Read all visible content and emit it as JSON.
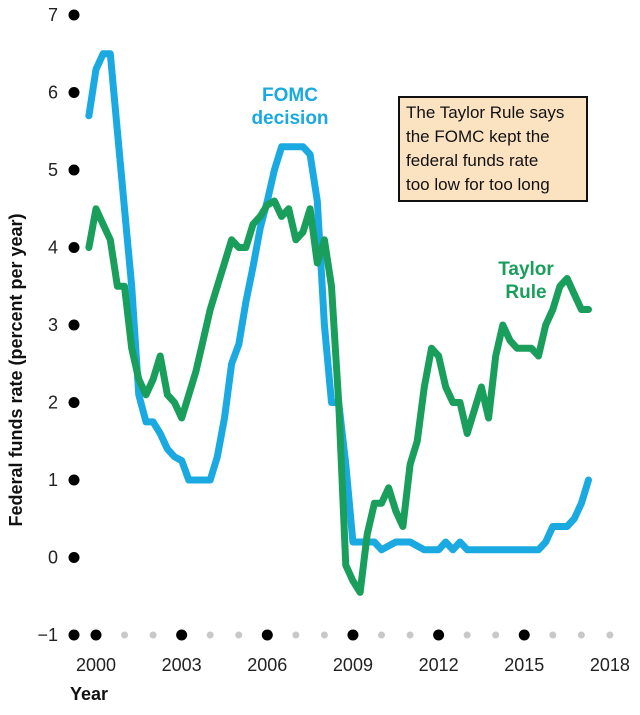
{
  "chart_data": {
    "type": "line",
    "title": "",
    "xlabel": "Year",
    "ylabel": "Federal funds rate (percent per year)",
    "xlim": [
      1999.5,
      2018.8
    ],
    "ylim": [
      -1,
      7
    ],
    "y_ticks": [
      -1,
      0,
      1,
      2,
      3,
      4,
      5,
      6,
      7
    ],
    "x_tick_labels": [
      "2000",
      "2003",
      "2006",
      "2009",
      "2012",
      "2015",
      "2018"
    ],
    "x_tick_values": [
      2000,
      2003,
      2006,
      2009,
      2012,
      2015,
      2018
    ],
    "x_minor_ticks": [
      2000,
      2001,
      2002,
      2003,
      2004,
      2005,
      2006,
      2007,
      2008,
      2009,
      2010,
      2011,
      2012,
      2013,
      2014,
      2015,
      2016,
      2017,
      2018
    ],
    "x_major_ticks": [
      2000,
      2003,
      2006,
      2009,
      2012,
      2015
    ],
    "annotation": {
      "lines": [
        "The Taylor Rule says",
        "the FOMC kept the",
        "federal funds rate",
        "too low for too long"
      ]
    },
    "series": [
      {
        "name": "FOMC decision",
        "label_lines": [
          "FOMC",
          "decision"
        ],
        "color": "#1aa9e0",
        "x": [
          1999.75,
          2000.0,
          2000.25,
          2000.5,
          2000.75,
          2001.0,
          2001.25,
          2001.5,
          2001.75,
          2002.0,
          2002.25,
          2002.5,
          2002.75,
          2003.0,
          2003.25,
          2003.5,
          2003.75,
          2004.0,
          2004.25,
          2004.5,
          2004.75,
          2005.0,
          2005.25,
          2005.5,
          2005.75,
          2006.0,
          2006.25,
          2006.5,
          2006.75,
          2007.0,
          2007.25,
          2007.5,
          2007.75,
          2008.0,
          2008.25,
          2008.5,
          2008.75,
          2009.0,
          2009.25,
          2009.5,
          2009.75,
          2010.0,
          2010.5,
          2011.0,
          2011.5,
          2012.0,
          2012.25,
          2012.5,
          2012.75,
          2013.0,
          2013.5,
          2014.0,
          2014.5,
          2015.0,
          2015.5,
          2015.75,
          2016.0,
          2016.5,
          2016.75,
          2017.0,
          2017.25
        ],
        "values": [
          5.7,
          6.3,
          6.5,
          6.5,
          5.5,
          4.5,
          3.5,
          2.1,
          1.75,
          1.75,
          1.6,
          1.4,
          1.3,
          1.25,
          1.0,
          1.0,
          1.0,
          1.0,
          1.3,
          1.8,
          2.5,
          2.75,
          3.3,
          3.75,
          4.25,
          4.6,
          5.0,
          5.3,
          5.3,
          5.3,
          5.3,
          5.2,
          4.6,
          3.0,
          2.0,
          2.0,
          1.2,
          0.2,
          0.2,
          0.2,
          0.2,
          0.1,
          0.2,
          0.2,
          0.1,
          0.1,
          0.2,
          0.1,
          0.2,
          0.1,
          0.1,
          0.1,
          0.1,
          0.1,
          0.1,
          0.2,
          0.4,
          0.4,
          0.5,
          0.7,
          1.0
        ]
      },
      {
        "name": "Taylor Rule",
        "label_lines": [
          "Taylor",
          "Rule"
        ],
        "color": "#1a9e5c",
        "x": [
          1999.75,
          2000.0,
          2000.25,
          2000.5,
          2000.75,
          2001.0,
          2001.25,
          2001.5,
          2001.75,
          2002.0,
          2002.25,
          2002.5,
          2002.75,
          2003.0,
          2003.25,
          2003.5,
          2003.75,
          2004.0,
          2004.25,
          2004.5,
          2004.75,
          2005.0,
          2005.25,
          2005.5,
          2005.75,
          2006.0,
          2006.25,
          2006.5,
          2006.75,
          2007.0,
          2007.25,
          2007.5,
          2007.75,
          2008.0,
          2008.25,
          2008.5,
          2008.75,
          2009.0,
          2009.25,
          2009.5,
          2009.75,
          2010.0,
          2010.25,
          2010.5,
          2010.75,
          2011.0,
          2011.25,
          2011.5,
          2011.75,
          2012.0,
          2012.25,
          2012.5,
          2012.75,
          2013.0,
          2013.25,
          2013.5,
          2013.75,
          2014.0,
          2014.25,
          2014.5,
          2014.75,
          2015.0,
          2015.25,
          2015.5,
          2015.75,
          2016.0,
          2016.25,
          2016.5,
          2016.75,
          2017.0,
          2017.25
        ],
        "values": [
          4.0,
          4.5,
          4.3,
          4.1,
          3.5,
          3.5,
          2.7,
          2.3,
          2.1,
          2.3,
          2.6,
          2.1,
          2.0,
          1.8,
          2.1,
          2.4,
          2.8,
          3.2,
          3.5,
          3.8,
          4.1,
          4.0,
          4.0,
          4.3,
          4.4,
          4.55,
          4.6,
          4.4,
          4.5,
          4.1,
          4.2,
          4.5,
          3.8,
          4.1,
          3.5,
          2.0,
          -0.1,
          -0.3,
          -0.45,
          0.3,
          0.7,
          0.7,
          0.9,
          0.6,
          0.4,
          1.2,
          1.5,
          2.2,
          2.7,
          2.6,
          2.2,
          2.0,
          2.0,
          1.6,
          1.9,
          2.2,
          1.8,
          2.6,
          3.0,
          2.8,
          2.7,
          2.7,
          2.7,
          2.6,
          3.0,
          3.2,
          3.5,
          3.6,
          3.4,
          3.2,
          3.2
        ]
      }
    ]
  }
}
